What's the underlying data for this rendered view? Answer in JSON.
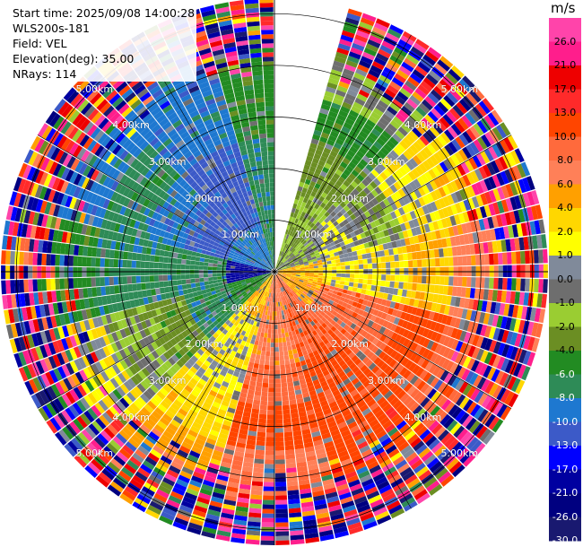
{
  "info": {
    "start_time": "Start time: 2025/09/08 14:00:28",
    "instrument": "WLS200s-181",
    "field": "Field: VEL",
    "elevation": "Elevation(deg): 35.00",
    "nrays": "NRays: 114"
  },
  "chart_data": {
    "type": "heatmap",
    "projection": "polar-ppi",
    "field": "VEL",
    "units": "m/s",
    "nrays": 114,
    "elevation_deg": 35.0,
    "range_max_km": 5.3,
    "range_ring_labels": [
      "1.00km",
      "2.00km",
      "3.00km",
      "4.00km",
      "5.00km"
    ],
    "spoke_step_deg": 30,
    "missing_sector_deg": [
      0,
      15
    ],
    "colorbar": {
      "ticks": [
        "26.0",
        "21.0",
        "17.0",
        "13.0",
        "10.0",
        "8.0",
        "6.0",
        "4.0",
        "2.0",
        "1.0",
        "0.0",
        "-1.0",
        "-2.0",
        "-4.0",
        "-6.0",
        "-8.0",
        "-10.0",
        "-13.0",
        "-17.0",
        "-21.0",
        "-26.0",
        "-30.0"
      ],
      "bins": [
        {
          "min": 26,
          "max": 30,
          "color": "#ff44aa"
        },
        {
          "min": 21,
          "max": 26,
          "color": "#ff1e8c"
        },
        {
          "min": 17,
          "max": 21,
          "color": "#ee0000"
        },
        {
          "min": 13,
          "max": 17,
          "color": "#ff2a2a"
        },
        {
          "min": 10,
          "max": 13,
          "color": "#ff4500"
        },
        {
          "min": 8,
          "max": 10,
          "color": "#ff6a3c"
        },
        {
          "min": 6,
          "max": 8,
          "color": "#ff8058"
        },
        {
          "min": 4,
          "max": 6,
          "color": "#ffa000"
        },
        {
          "min": 2,
          "max": 4,
          "color": "#ffd700"
        },
        {
          "min": 1,
          "max": 2,
          "color": "#ffff00"
        },
        {
          "min": 0,
          "max": 1,
          "color": "#808a9a"
        },
        {
          "min": -1,
          "max": 0,
          "color": "#6e6e6e"
        },
        {
          "min": -2,
          "max": -1,
          "color": "#9acd32"
        },
        {
          "min": -4,
          "max": -2,
          "color": "#6b8e23"
        },
        {
          "min": -6,
          "max": -4,
          "color": "#228b22"
        },
        {
          "min": -8,
          "max": -6,
          "color": "#2e8b57"
        },
        {
          "min": -10,
          "max": -8,
          "color": "#1e78d0"
        },
        {
          "min": -13,
          "max": -10,
          "color": "#3c5ac8"
        },
        {
          "min": -17,
          "max": -13,
          "color": "#0000ff"
        },
        {
          "min": -21,
          "max": -17,
          "color": "#0000a0"
        },
        {
          "min": -26,
          "max": -21,
          "color": "#000080"
        },
        {
          "min": -30,
          "max": -26,
          "color": "#191970"
        }
      ]
    },
    "sectors": [
      {
        "az_from": 15,
        "az_to": 45,
        "values_by_range": [
          -2,
          -2,
          -3,
          -5,
          -1
        ]
      },
      {
        "az_from": 45,
        "az_to": 75,
        "values_by_range": [
          -1,
          0.5,
          -1.5,
          1.5,
          3
        ]
      },
      {
        "az_from": 75,
        "az_to": 105,
        "values_by_range": [
          4,
          1.5,
          1.5,
          4,
          7
        ]
      },
      {
        "az_from": 105,
        "az_to": 135,
        "values_by_range": [
          5,
          9,
          9,
          11,
          9
        ]
      },
      {
        "az_from": 135,
        "az_to": 165,
        "values_by_range": [
          9,
          10,
          11,
          11,
          12
        ]
      },
      {
        "az_from": 165,
        "az_to": 195,
        "values_by_range": [
          7,
          7,
          9,
          11,
          8
        ]
      },
      {
        "az_from": 195,
        "az_to": 225,
        "values_by_range": [
          4,
          1.5,
          1.5,
          3,
          5
        ]
      },
      {
        "az_from": 225,
        "az_to": 255,
        "values_by_range": [
          -5,
          -7,
          -3,
          -1.5,
          1.5
        ]
      },
      {
        "az_from": 255,
        "az_to": 285,
        "values_by_range": [
          -20,
          -7,
          -7,
          -7,
          -5
        ]
      },
      {
        "az_from": 285,
        "az_to": 315,
        "values_by_range": [
          -9,
          -11,
          -9,
          -7,
          -9
        ]
      },
      {
        "az_from": 315,
        "az_to": 345,
        "values_by_range": [
          -9,
          -11,
          -11,
          -9,
          -9
        ]
      },
      {
        "az_from": 345,
        "az_to": 360,
        "values_by_range": [
          -7,
          -7,
          -7,
          -5,
          -5
        ]
      }
    ]
  }
}
